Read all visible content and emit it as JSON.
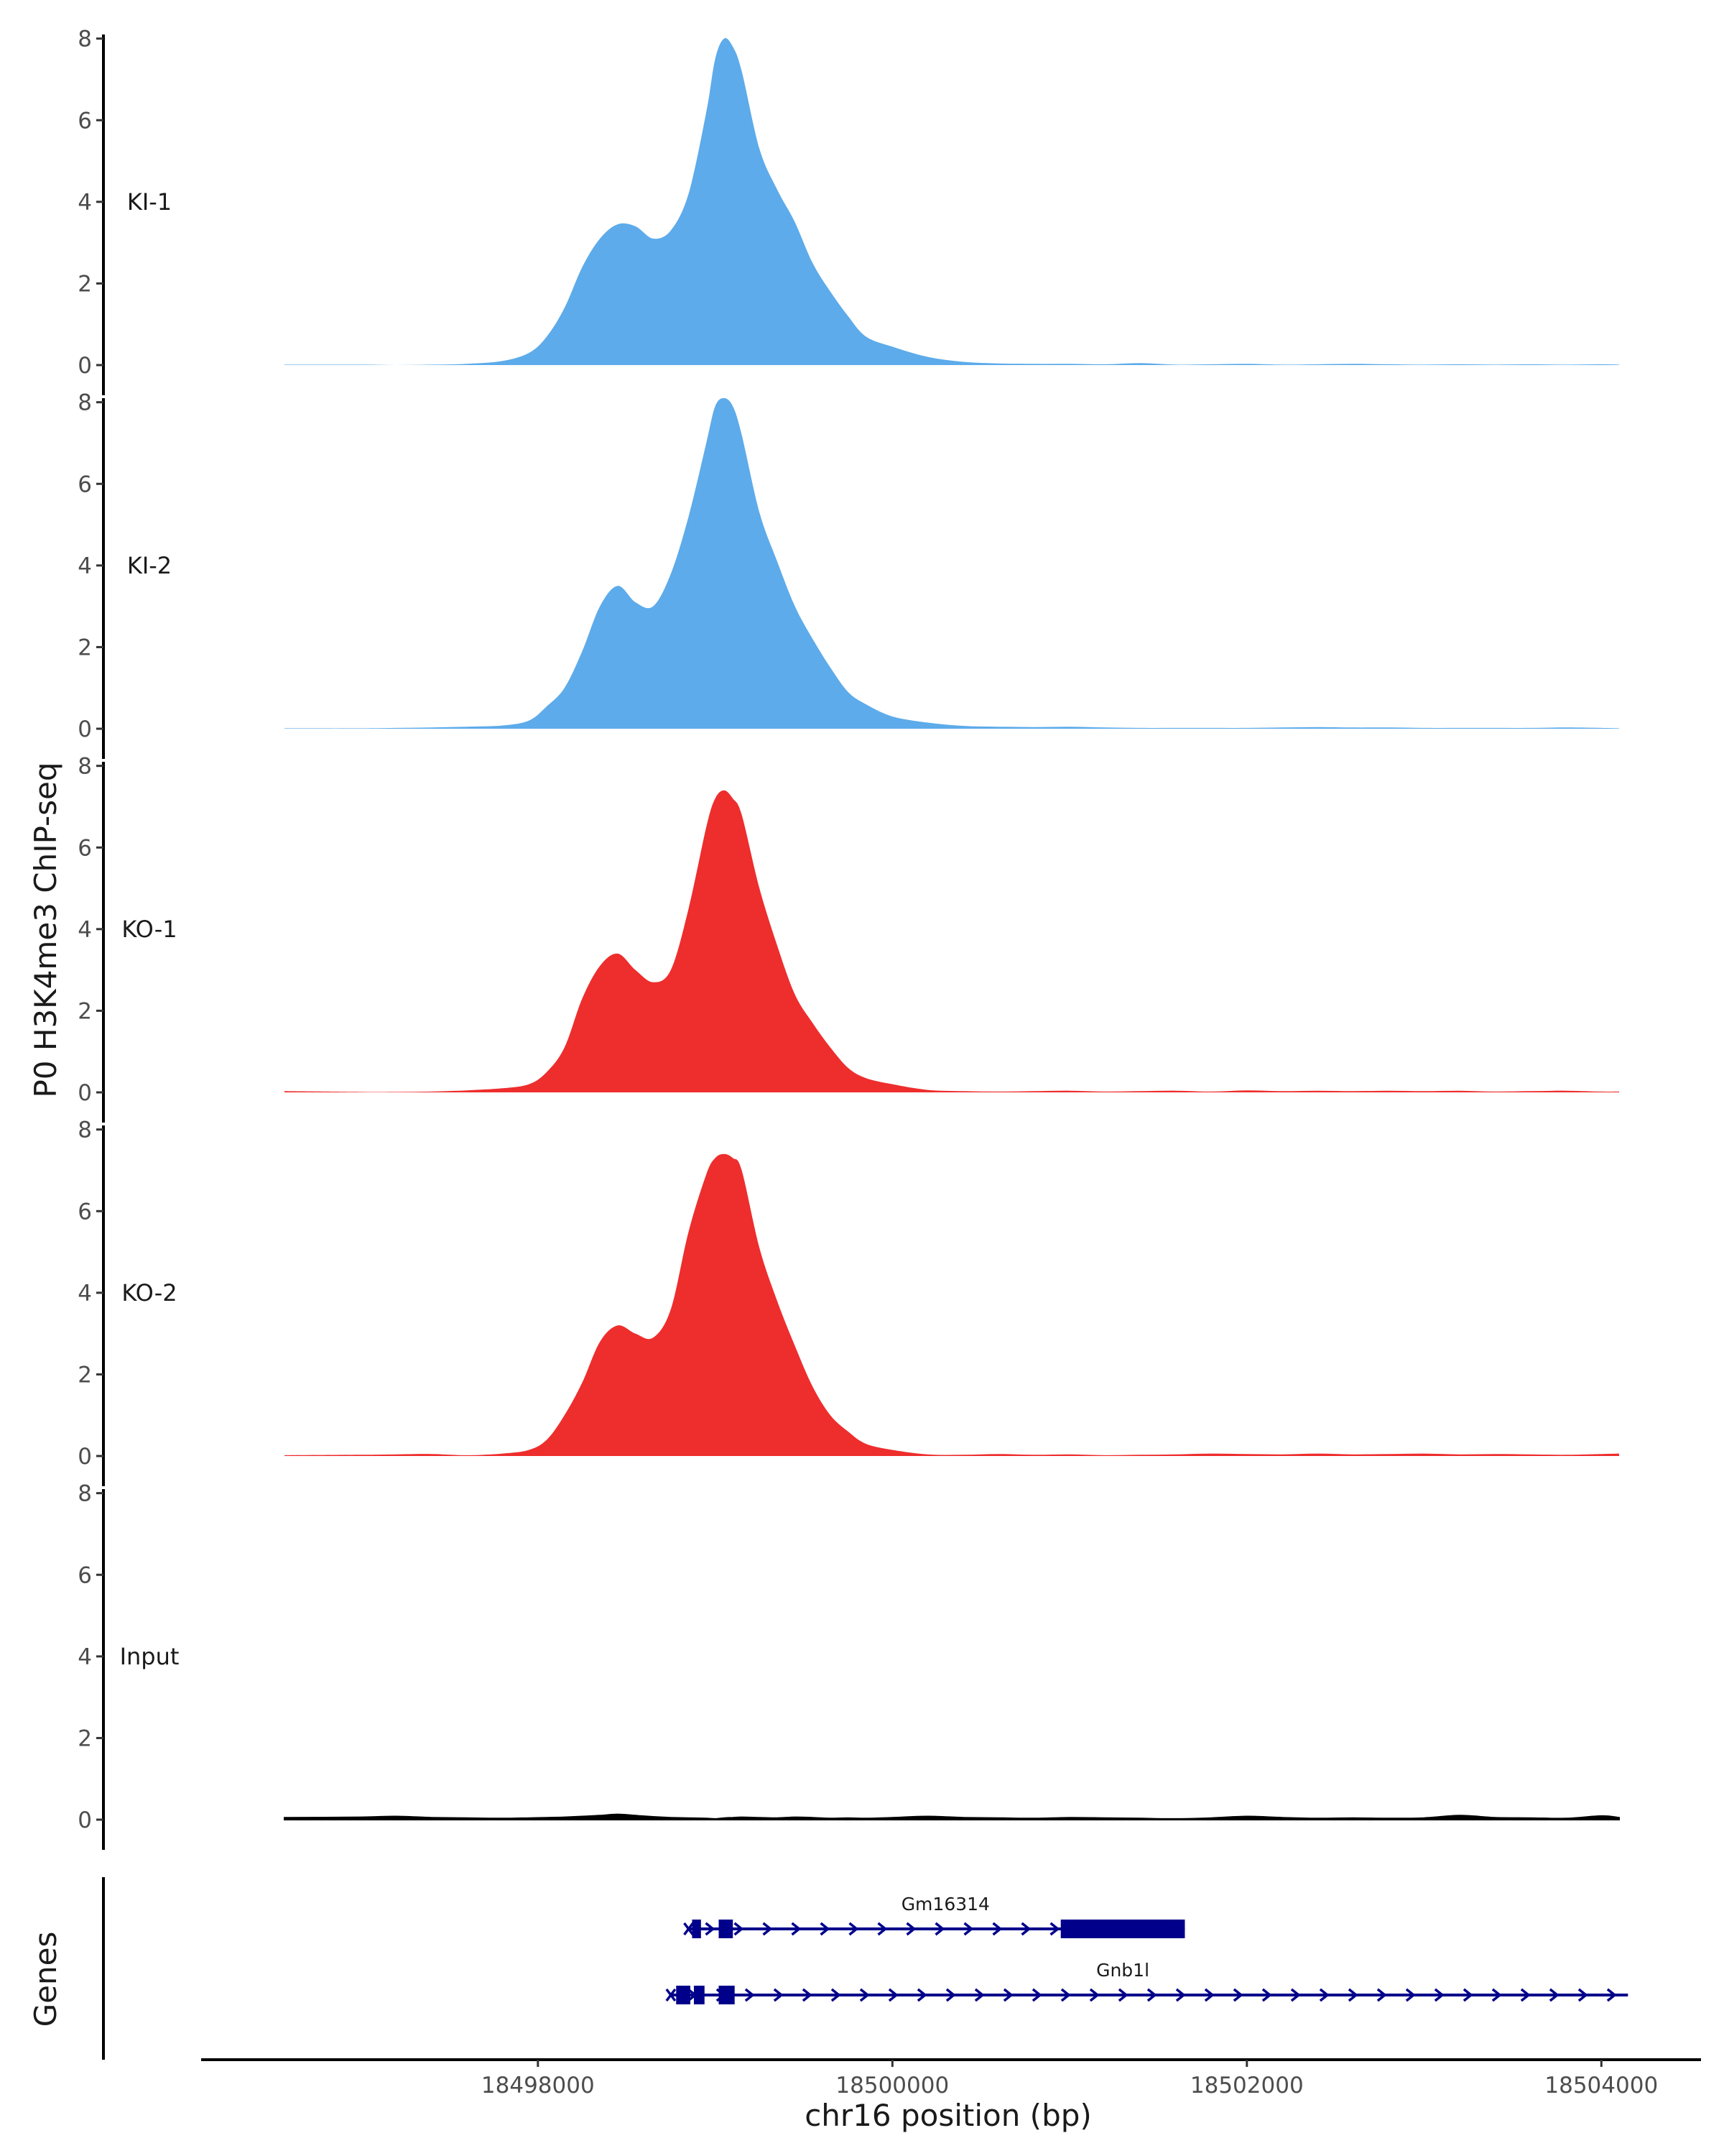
{
  "chart_data": {
    "type": "area",
    "ylabel": "P0 H3K4me3 ChIP-seq",
    "xlabel": "chr16 position (bp)",
    "gene_panel_label": "Genes",
    "y_ticks": [
      0,
      2,
      4,
      6,
      8
    ],
    "ylim": [
      0,
      8.5
    ],
    "xlim": [
      18496100,
      18504550
    ],
    "x_ticks": [
      18498000,
      18500000,
      18502000,
      18504000
    ],
    "x_tick_labels": [
      "18498000",
      "18500000",
      "18502000",
      "18504000"
    ],
    "colors": {
      "KI": "#5DABEA",
      "KO": "#EE2D2D",
      "Input": "#000000",
      "gene": "#00008B"
    },
    "tracks": [
      {
        "label": "KI-1",
        "color": "#5DABEA",
        "x": [
          18496570,
          18497000,
          18497200,
          18497400,
          18497600,
          18497800,
          18497950,
          18498050,
          18498150,
          18498250,
          18498350,
          18498450,
          18498550,
          18498650,
          18498750,
          18498850,
          18498950,
          18499000,
          18499050,
          18499100,
          18499150,
          18499250,
          18499350,
          18499450,
          18499550,
          18499650,
          18499750,
          18499850,
          18500000,
          18500200,
          18500400,
          18500600,
          18500800,
          18501000,
          18501200,
          18501400,
          18501600,
          18501800,
          18502000,
          18502200,
          18502400,
          18502600,
          18502800,
          18503000,
          18503200,
          18503400,
          18503600,
          18503800,
          18504000,
          18504100
        ],
        "y": [
          0.01,
          0.01,
          0.0,
          0.01,
          0.03,
          0.1,
          0.3,
          0.7,
          1.4,
          2.4,
          3.1,
          3.45,
          3.4,
          3.1,
          3.3,
          4.2,
          6.2,
          7.5,
          8.0,
          7.8,
          7.2,
          5.3,
          4.3,
          3.5,
          2.5,
          1.8,
          1.2,
          0.7,
          0.45,
          0.2,
          0.08,
          0.04,
          0.03,
          0.03,
          0.02,
          0.05,
          0.01,
          0.02,
          0.03,
          0.01,
          0.02,
          0.03,
          0.02,
          0.01,
          0.02,
          0.01,
          0.02,
          0.01,
          0.02,
          0.01
        ]
      },
      {
        "label": "KI-2",
        "color": "#5DABEA",
        "x": [
          18496570,
          18497000,
          18497200,
          18497400,
          18497600,
          18497800,
          18497950,
          18498050,
          18498150,
          18498250,
          18498350,
          18498450,
          18498550,
          18498650,
          18498750,
          18498850,
          18498950,
          18499000,
          18499050,
          18499100,
          18499150,
          18499250,
          18499350,
          18499450,
          18499550,
          18499650,
          18499750,
          18499850,
          18500000,
          18500200,
          18500400,
          18500600,
          18500800,
          18501000,
          18501200,
          18501400,
          18501600,
          18501800,
          18502000,
          18502200,
          18502400,
          18502600,
          18502800,
          18503000,
          18503200,
          18503400,
          18503600,
          18503800,
          18504000,
          18504100
        ],
        "y": [
          0.01,
          0.01,
          0.02,
          0.03,
          0.05,
          0.08,
          0.2,
          0.55,
          1.0,
          1.9,
          3.0,
          3.5,
          3.1,
          3.0,
          3.8,
          5.2,
          7.0,
          7.9,
          8.1,
          7.9,
          7.2,
          5.3,
          4.1,
          3.0,
          2.2,
          1.5,
          0.9,
          0.6,
          0.3,
          0.15,
          0.07,
          0.05,
          0.04,
          0.05,
          0.03,
          0.02,
          0.02,
          0.02,
          0.02,
          0.03,
          0.04,
          0.03,
          0.03,
          0.02,
          0.02,
          0.02,
          0.02,
          0.03,
          0.02,
          0.01
        ]
      },
      {
        "label": "KO-1",
        "color": "#EE2D2D",
        "x": [
          18496570,
          18497000,
          18497200,
          18497400,
          18497600,
          18497800,
          18497950,
          18498050,
          18498150,
          18498250,
          18498350,
          18498450,
          18498550,
          18498650,
          18498750,
          18498850,
          18498950,
          18499000,
          18499050,
          18499100,
          18499150,
          18499250,
          18499350,
          18499450,
          18499550,
          18499650,
          18499750,
          18499850,
          18500000,
          18500200,
          18500400,
          18500600,
          18500800,
          18501000,
          18501200,
          18501400,
          18501600,
          18501800,
          18502000,
          18502200,
          18502400,
          18502600,
          18502800,
          18503000,
          18503200,
          18503400,
          18503600,
          18503800,
          18504000,
          18504100
        ],
        "y": [
          0.03,
          0.01,
          0.01,
          0.02,
          0.05,
          0.1,
          0.2,
          0.5,
          1.1,
          2.3,
          3.1,
          3.4,
          3.0,
          2.7,
          3.0,
          4.5,
          6.5,
          7.2,
          7.4,
          7.2,
          6.8,
          5.0,
          3.6,
          2.4,
          1.7,
          1.1,
          0.6,
          0.35,
          0.2,
          0.06,
          0.03,
          0.02,
          0.03,
          0.04,
          0.02,
          0.03,
          0.04,
          0.02,
          0.05,
          0.03,
          0.04,
          0.03,
          0.04,
          0.03,
          0.04,
          0.02,
          0.03,
          0.04,
          0.02,
          0.02
        ]
      },
      {
        "label": "KO-2",
        "color": "#EE2D2D",
        "x": [
          18496570,
          18497000,
          18497200,
          18497400,
          18497600,
          18497800,
          18497950,
          18498050,
          18498150,
          18498250,
          18498350,
          18498450,
          18498550,
          18498650,
          18498750,
          18498850,
          18498950,
          18499000,
          18499050,
          18499100,
          18499150,
          18499250,
          18499350,
          18499450,
          18499550,
          18499650,
          18499750,
          18499850,
          18500000,
          18500200,
          18500400,
          18500600,
          18500800,
          18501000,
          18501200,
          18501400,
          18501600,
          18501800,
          18502000,
          18502200,
          18502400,
          18502600,
          18502800,
          18503000,
          18503200,
          18503400,
          18503600,
          18503800,
          18504000,
          18504100
        ],
        "y": [
          0.02,
          0.03,
          0.04,
          0.05,
          0.02,
          0.06,
          0.15,
          0.4,
          1.0,
          1.8,
          2.8,
          3.2,
          3.0,
          2.9,
          3.6,
          5.5,
          6.9,
          7.3,
          7.4,
          7.3,
          7.0,
          5.1,
          3.8,
          2.7,
          1.7,
          1.0,
          0.6,
          0.3,
          0.15,
          0.04,
          0.03,
          0.05,
          0.03,
          0.04,
          0.02,
          0.03,
          0.04,
          0.06,
          0.05,
          0.04,
          0.06,
          0.04,
          0.05,
          0.06,
          0.04,
          0.05,
          0.04,
          0.03,
          0.05,
          0.06
        ]
      },
      {
        "label": "Input",
        "color": "#000000",
        "x": [
          18496570,
          18497000,
          18497200,
          18497400,
          18497600,
          18497800,
          18497950,
          18498050,
          18498150,
          18498250,
          18498350,
          18498450,
          18498550,
          18498650,
          18498750,
          18498850,
          18498950,
          18499000,
          18499050,
          18499100,
          18499150,
          18499250,
          18499350,
          18499450,
          18499550,
          18499650,
          18499750,
          18499850,
          18500000,
          18500200,
          18500400,
          18500600,
          18500800,
          18501000,
          18501200,
          18501400,
          18501600,
          18501800,
          18502000,
          18502200,
          18502400,
          18502600,
          18502800,
          18503000,
          18503200,
          18503400,
          18503600,
          18503800,
          18504000,
          18504100
        ],
        "y": [
          0.05,
          0.06,
          0.08,
          0.05,
          0.04,
          0.03,
          0.04,
          0.05,
          0.06,
          0.08,
          0.1,
          0.13,
          0.1,
          0.07,
          0.05,
          0.04,
          0.03,
          0.02,
          0.04,
          0.05,
          0.06,
          0.05,
          0.04,
          0.06,
          0.05,
          0.03,
          0.04,
          0.03,
          0.05,
          0.08,
          0.05,
          0.04,
          0.03,
          0.05,
          0.04,
          0.03,
          0.02,
          0.04,
          0.08,
          0.05,
          0.03,
          0.04,
          0.03,
          0.04,
          0.1,
          0.05,
          0.04,
          0.03,
          0.09,
          0.05
        ]
      }
    ],
    "genes": [
      {
        "name": "Gm16314",
        "row": 0,
        "start": 18498850,
        "end": 18501650,
        "label_x": 18500300,
        "exons": [
          [
            18498870,
            18498920
          ],
          [
            18499020,
            18499100
          ],
          [
            18500950,
            18501650
          ]
        ]
      },
      {
        "name": "Gnb1l",
        "row": 1,
        "start": 18498750,
        "end": 18504150,
        "label_x": 18501300,
        "exons": [
          [
            18498780,
            18498860
          ],
          [
            18498880,
            18498940
          ],
          [
            18499020,
            18499110
          ]
        ]
      }
    ]
  }
}
